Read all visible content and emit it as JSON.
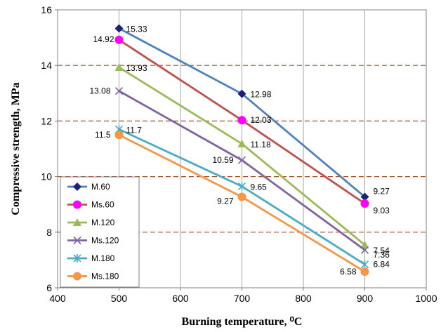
{
  "chart_data": {
    "type": "line",
    "x": [
      500,
      700,
      900
    ],
    "xlabel": "Burning temperature, ⁰C",
    "ylabel": "Compressive strength, MPa",
    "xlim": [
      400,
      1000
    ],
    "ylim": [
      6,
      16
    ],
    "x_ticks": [
      400,
      500,
      600,
      700,
      800,
      900,
      1000
    ],
    "y_ticks": [
      6,
      8,
      10,
      12,
      14,
      16
    ],
    "vertical_grid": true,
    "horizontal_grid": "dashed",
    "grid_colors": {
      "vertical": "#a6a6a6",
      "horizontal": "#a0522d"
    },
    "legend_position": "bottom-left",
    "series": [
      {
        "name": "M.60",
        "values": [
          15.33,
          12.98,
          9.27
        ],
        "color": "#4f81bd",
        "marker": "diamond",
        "marker_color": "#1f1f7a",
        "labels": [
          "15.33",
          "12.98",
          "9.27"
        ]
      },
      {
        "name": "Ms.60",
        "values": [
          14.92,
          12.03,
          9.03
        ],
        "color": "#c0504d",
        "marker": "circle",
        "marker_color": "#ff00ff",
        "labels": [
          "14.92",
          "12.03",
          "9.03"
        ]
      },
      {
        "name": "M.120",
        "values": [
          13.93,
          11.18,
          7.54
        ],
        "color": "#9bbb59",
        "marker": "triangle",
        "marker_color": "#9bbb59",
        "labels": [
          "13.93",
          "11.18",
          "7.54"
        ]
      },
      {
        "name": "Ms.120",
        "values": [
          13.08,
          10.59,
          7.36
        ],
        "color": "#8064a2",
        "marker": "x",
        "marker_color": "#8064a2",
        "labels": [
          "13.08",
          "10.59",
          "7.36"
        ]
      },
      {
        "name": "M.180",
        "values": [
          11.7,
          9.65,
          6.84
        ],
        "color": "#4bacc6",
        "marker": "star",
        "marker_color": "#4bacc6",
        "labels": [
          "11.7",
          "9.65",
          "6.84"
        ]
      },
      {
        "name": "Ms.180",
        "values": [
          11.5,
          9.27,
          6.58
        ],
        "color": "#f79646",
        "marker": "circle",
        "marker_color": "#f79646",
        "labels": [
          "11.5",
          "9.27",
          "6.58"
        ]
      }
    ]
  }
}
